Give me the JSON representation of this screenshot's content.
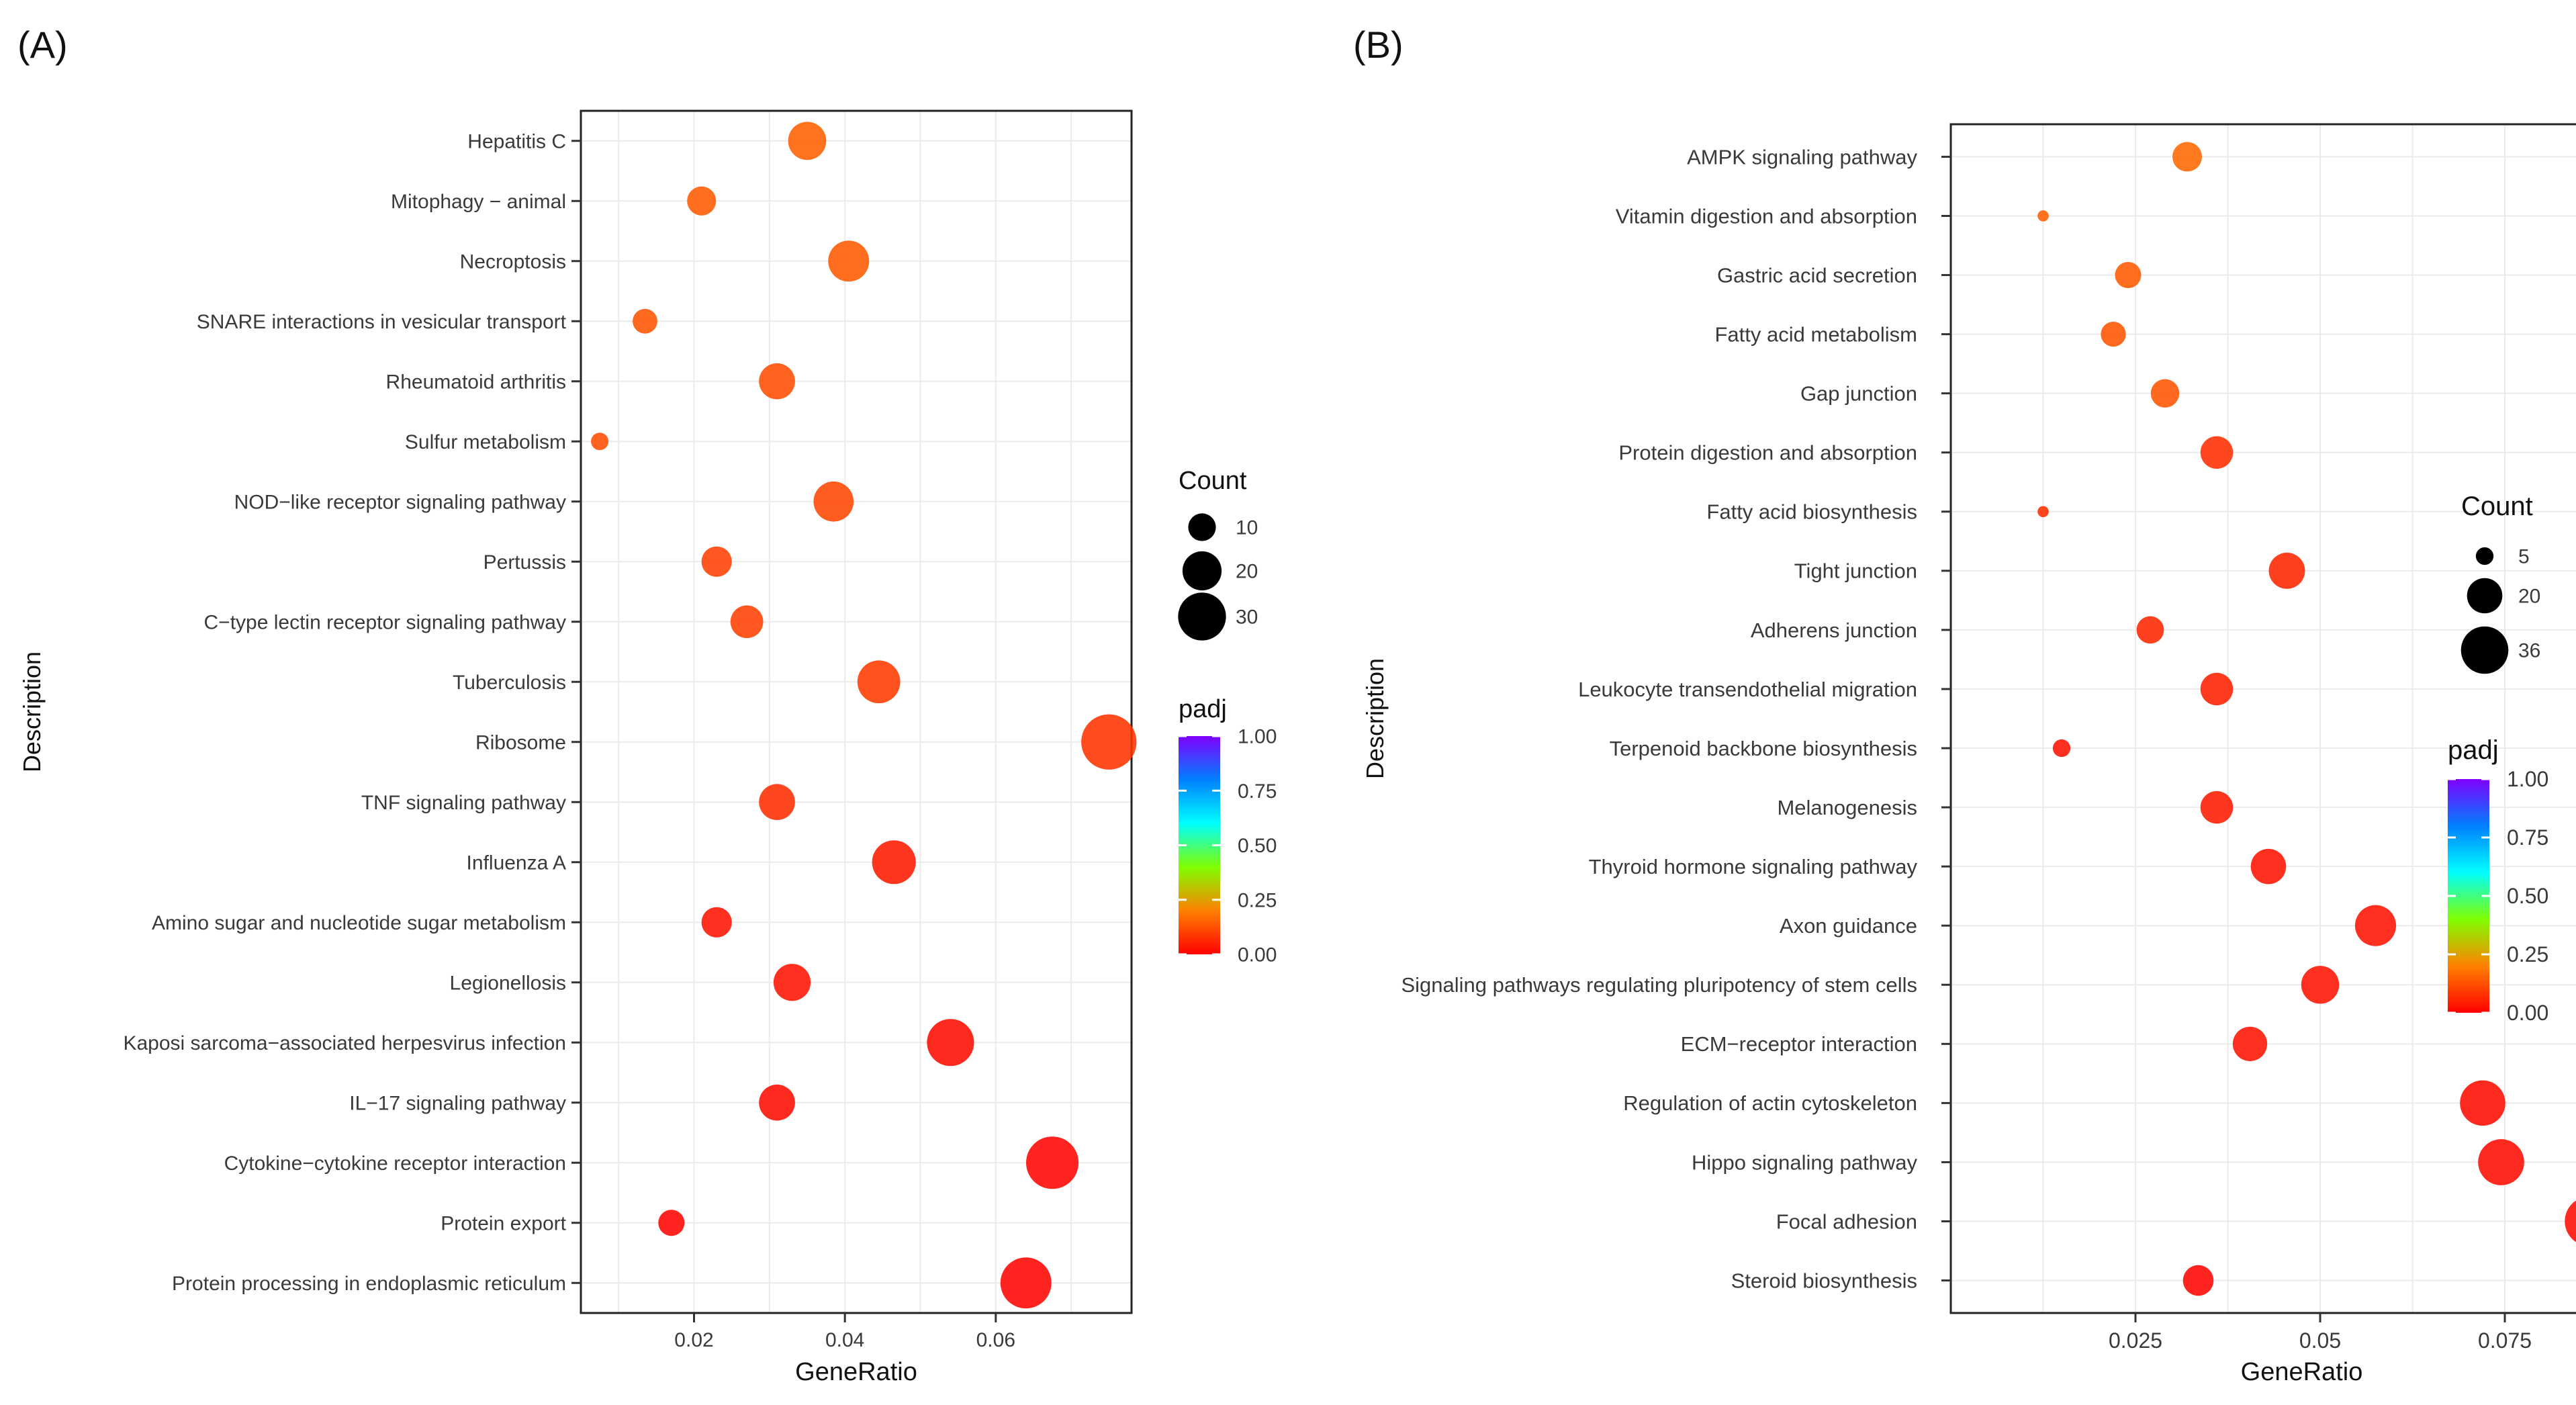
{
  "chart_data": [
    {
      "panel_label": "(A)",
      "type": "scatter",
      "xlabel": "GeneRatio",
      "ylabel": "Description",
      "xlim": [
        0.005,
        0.078
      ],
      "xticks": [
        0.02,
        0.04,
        0.06
      ],
      "xtick_labels": [
        "0.02",
        "0.04",
        "0.06"
      ],
      "grid": true,
      "legend_placement": "right",
      "size_legend": {
        "title": "Count",
        "entries": [
          {
            "label": "10",
            "value": 10
          },
          {
            "label": "20",
            "value": 20
          },
          {
            "label": "30",
            "value": 30
          }
        ]
      },
      "color_legend": {
        "title": "padj",
        "ticks": [
          "1.00",
          "0.75",
          "0.50",
          "0.25",
          "0.00"
        ]
      },
      "color_scale": [
        "#ff0000",
        "#ff8000",
        "#80ff00",
        "#00ffff",
        "#0080ff",
        "#8000ff"
      ],
      "points": [
        {
          "term": "Hepatitis C",
          "gene_ratio": 0.035,
          "count": 19,
          "padj": 0.15
        },
        {
          "term": "Mitophagy − animal",
          "gene_ratio": 0.021,
          "count": 11,
          "padj": 0.14
        },
        {
          "term": "Necroptosis",
          "gene_ratio": 0.0405,
          "count": 22,
          "padj": 0.14
        },
        {
          "term": "SNARE interactions in vesicular transport",
          "gene_ratio": 0.0135,
          "count": 8,
          "padj": 0.13
        },
        {
          "term": "Rheumatoid arthritis",
          "gene_ratio": 0.031,
          "count": 17,
          "padj": 0.12
        },
        {
          "term": "Sulfur metabolism",
          "gene_ratio": 0.0075,
          "count": 4,
          "padj": 0.12
        },
        {
          "term": "NOD−like receptor signaling pathway",
          "gene_ratio": 0.0385,
          "count": 21,
          "padj": 0.11
        },
        {
          "term": "Pertussis",
          "gene_ratio": 0.023,
          "count": 12,
          "padj": 0.1
        },
        {
          "term": "C−type lectin receptor signaling pathway",
          "gene_ratio": 0.027,
          "count": 14,
          "padj": 0.1
        },
        {
          "term": "Tuberculosis",
          "gene_ratio": 0.0445,
          "count": 24,
          "padj": 0.09
        },
        {
          "term": "Ribosome",
          "gene_ratio": 0.075,
          "count": 40,
          "padj": 0.08
        },
        {
          "term": "TNF signaling pathway",
          "gene_ratio": 0.031,
          "count": 17,
          "padj": 0.07
        },
        {
          "term": "Influenza A",
          "gene_ratio": 0.0465,
          "count": 25,
          "padj": 0.04
        },
        {
          "term": "Amino sugar and nucleotide sugar metabolism",
          "gene_ratio": 0.023,
          "count": 12,
          "padj": 0.03
        },
        {
          "term": "Legionellosis",
          "gene_ratio": 0.033,
          "count": 18,
          "padj": 0.03
        },
        {
          "term": "Kaposi sarcoma−associated herpesvirus infection",
          "gene_ratio": 0.054,
          "count": 29,
          "padj": 0.02
        },
        {
          "term": "IL−17 signaling pathway",
          "gene_ratio": 0.031,
          "count": 17,
          "padj": 0.02
        },
        {
          "term": "Cytokine−cytokine receptor interaction",
          "gene_ratio": 0.0675,
          "count": 36,
          "padj": 0.01
        },
        {
          "term": "Protein export",
          "gene_ratio": 0.017,
          "count": 9,
          "padj": 0.01
        },
        {
          "term": "Protein processing in endoplasmic reticulum",
          "gene_ratio": 0.064,
          "count": 34,
          "padj": 0.01
        }
      ]
    },
    {
      "panel_label": "(B)",
      "type": "scatter",
      "xlabel": "GeneRatio",
      "ylabel": "Description",
      "xlim": [
        0.0,
        0.095
      ],
      "xticks": [
        0.025,
        0.05,
        0.075
      ],
      "xtick_labels": [
        "0.025",
        "0.05",
        "0.075"
      ],
      "grid": true,
      "legend_placement": "right",
      "size_legend": {
        "title": "Count",
        "entries": [
          {
            "label": "5",
            "value": 5
          },
          {
            "label": "20",
            "value": 20
          },
          {
            "label": "36",
            "value": 36
          }
        ]
      },
      "color_legend": {
        "title": "padj",
        "ticks": [
          "1.00",
          "0.75",
          "0.50",
          "0.25",
          "0.00"
        ]
      },
      "color_scale": [
        "#ff0000",
        "#ff8000",
        "#80ff00",
        "#00ffff",
        "#0080ff",
        "#8000ff"
      ],
      "points": [
        {
          "term": "AMPK signaling pathway",
          "gene_ratio": 0.032,
          "count": 14,
          "padj": 0.16
        },
        {
          "term": "Vitamin digestion and absorption",
          "gene_ratio": 0.0125,
          "count": 2,
          "padj": 0.15
        },
        {
          "term": "Gastric acid secretion",
          "gene_ratio": 0.024,
          "count": 11,
          "padj": 0.14
        },
        {
          "term": "Fatty acid metabolism",
          "gene_ratio": 0.022,
          "count": 10,
          "padj": 0.13
        },
        {
          "term": "Gap junction",
          "gene_ratio": 0.029,
          "count": 13,
          "padj": 0.13
        },
        {
          "term": "Protein digestion and absorption",
          "gene_ratio": 0.036,
          "count": 17,
          "padj": 0.07
        },
        {
          "term": "Fatty acid biosynthesis",
          "gene_ratio": 0.0125,
          "count": 2,
          "padj": 0.07
        },
        {
          "term": "Tight junction",
          "gene_ratio": 0.0455,
          "count": 21,
          "padj": 0.06
        },
        {
          "term": "Adherens junction",
          "gene_ratio": 0.027,
          "count": 12,
          "padj": 0.06
        },
        {
          "term": "Leukocyte transendothelial migration",
          "gene_ratio": 0.036,
          "count": 17,
          "padj": 0.05
        },
        {
          "term": "Terpenoid backbone biosynthesis",
          "gene_ratio": 0.015,
          "count": 5,
          "padj": 0.03
        },
        {
          "term": "Melanogenesis",
          "gene_ratio": 0.036,
          "count": 17,
          "padj": 0.04
        },
        {
          "term": "Thyroid hormone signaling pathway",
          "gene_ratio": 0.043,
          "count": 20,
          "padj": 0.03
        },
        {
          "term": "Axon guidance",
          "gene_ratio": 0.0575,
          "count": 27,
          "padj": 0.03
        },
        {
          "term": "Signaling pathways regulating pluripotency of stem cells",
          "gene_ratio": 0.05,
          "count": 23,
          "padj": 0.03
        },
        {
          "term": "ECM−receptor interaction",
          "gene_ratio": 0.0405,
          "count": 19,
          "padj": 0.03
        },
        {
          "term": "Regulation of actin cytoskeleton",
          "gene_ratio": 0.072,
          "count": 33,
          "padj": 0.02
        },
        {
          "term": "Hippo signaling pathway",
          "gene_ratio": 0.0745,
          "count": 34,
          "padj": 0.02
        },
        {
          "term": "Focal adhesion",
          "gene_ratio": 0.0865,
          "count": 40,
          "padj": 0.02
        },
        {
          "term": "Steroid biosynthesis",
          "gene_ratio": 0.0335,
          "count": 15,
          "padj": 0.01
        }
      ]
    }
  ]
}
